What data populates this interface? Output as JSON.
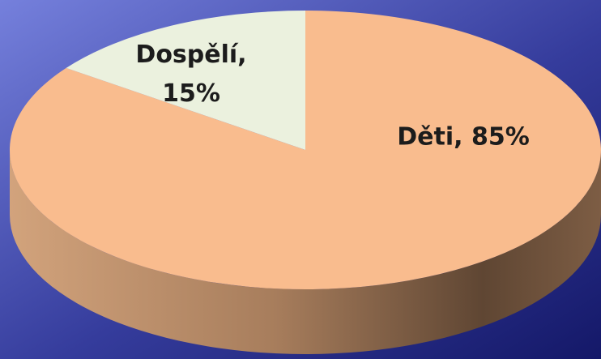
{
  "chart_data": {
    "type": "pie",
    "values": [
      85,
      15
    ],
    "value_labels": [
      "Děti, 85%",
      "Dospělí, 15%"
    ],
    "colors": [
      "#f9bc8e",
      "#ebf1de"
    ]
  }
}
